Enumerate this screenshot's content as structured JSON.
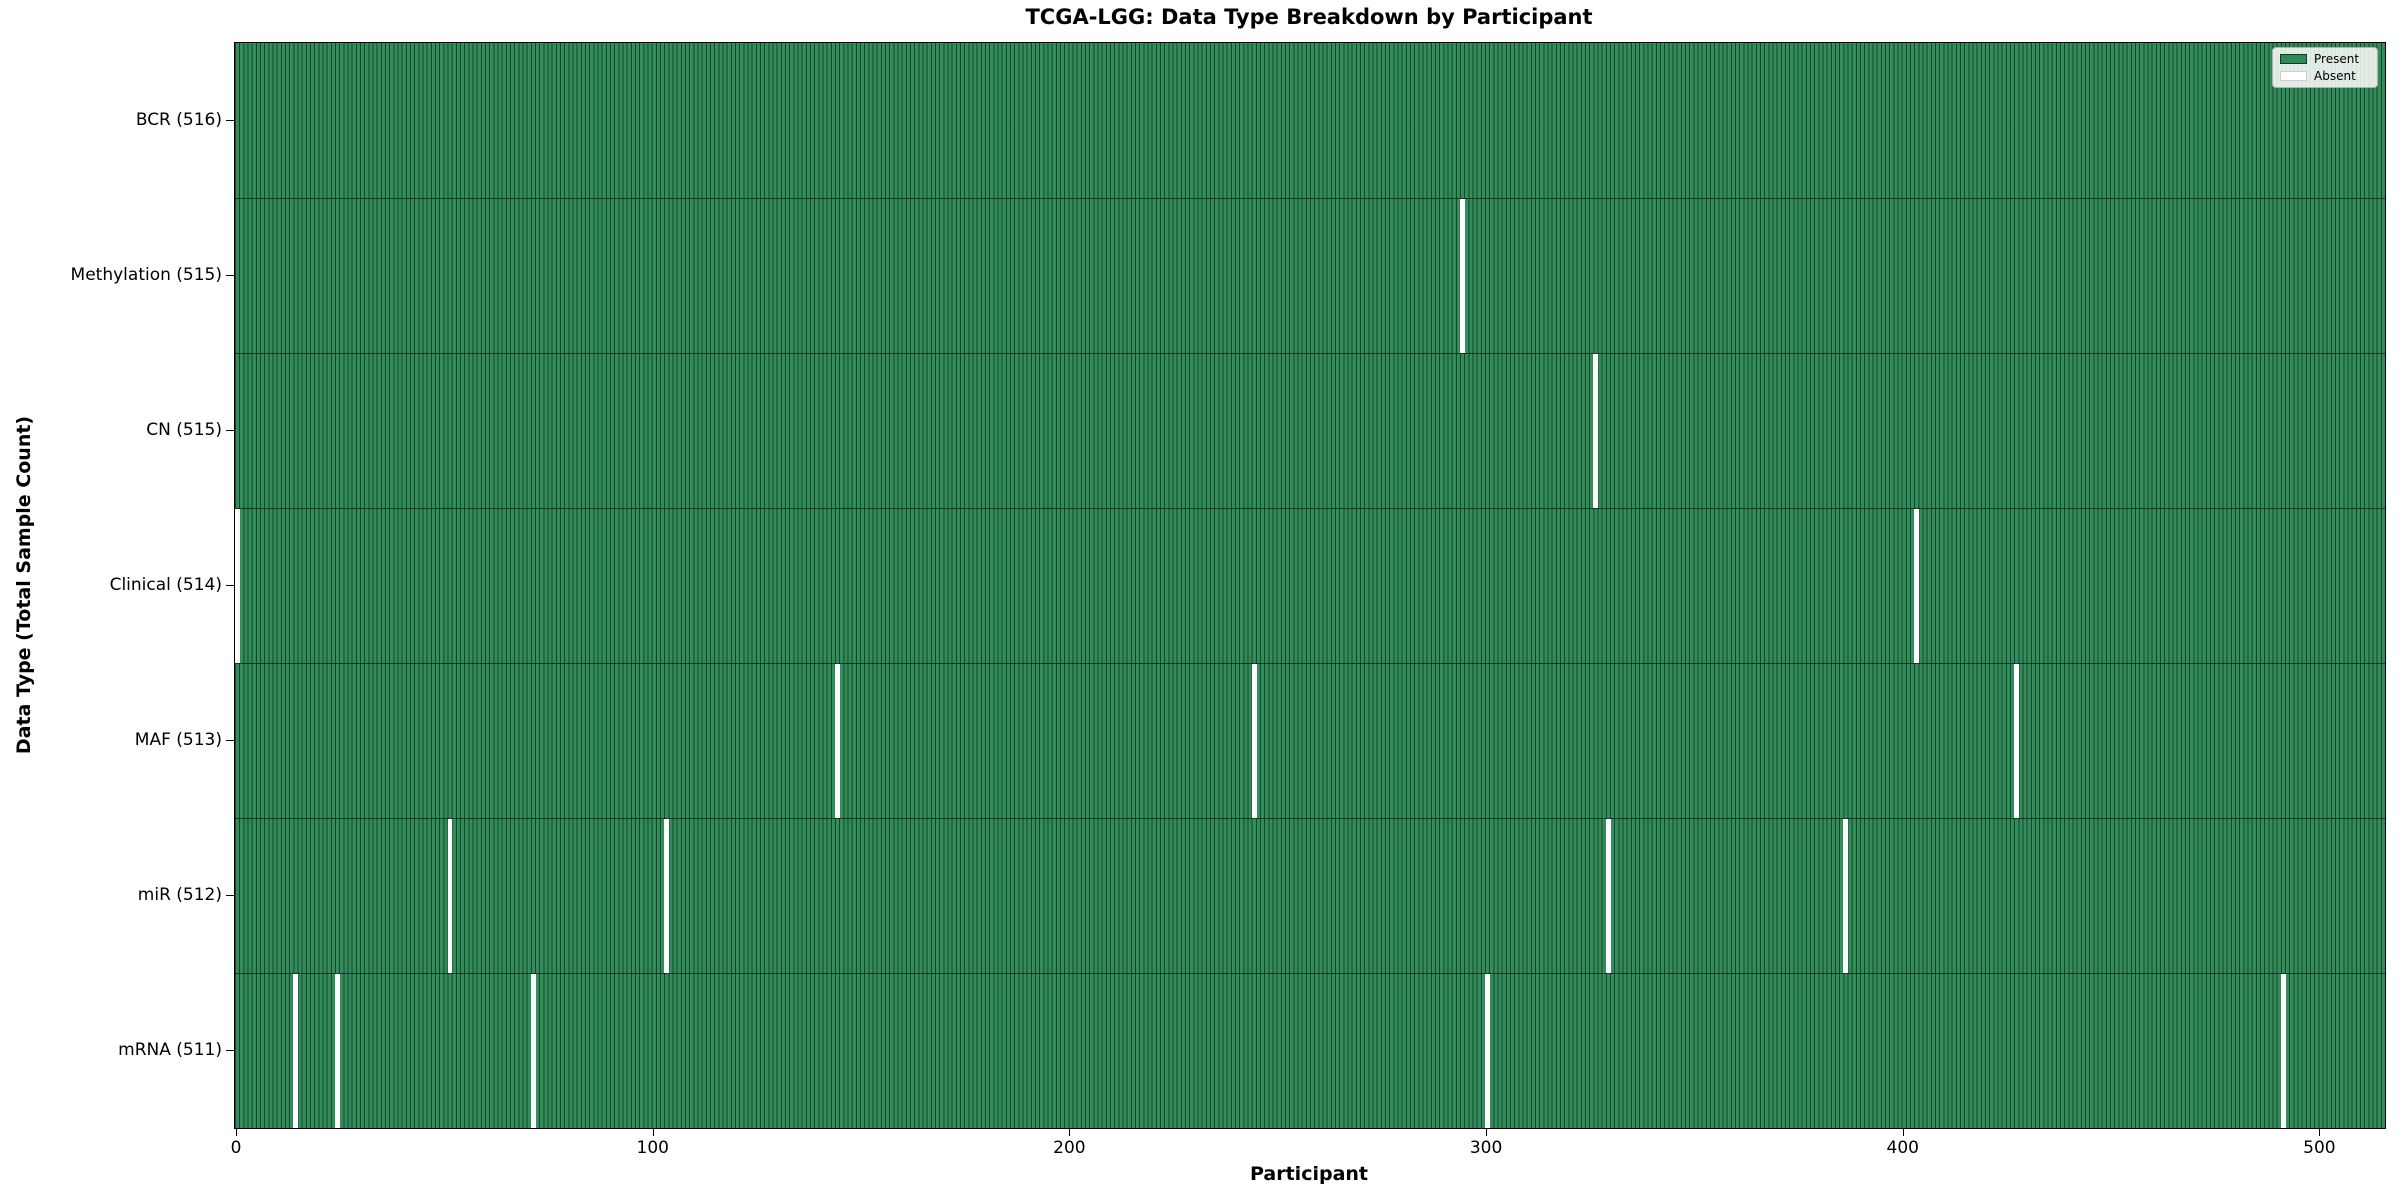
{
  "window": {
    "title": "TCGA-LGG: Data Type Breakdown by Participant"
  },
  "chart_data": {
    "type": "heatmap",
    "title": "TCGA-LGG: Data Type Breakdown by Participant",
    "xlabel": "Participant",
    "ylabel": "Data Type (Total Sample Count)",
    "x_ticks": [
      0,
      100,
      200,
      300,
      400,
      500
    ],
    "xlim": [
      -0.5,
      515.5
    ],
    "n_participants": 516,
    "grid": false,
    "legend_position": "upper right",
    "legend": [
      {
        "label": "Present",
        "color": "#2e8b57"
      },
      {
        "label": "Absent",
        "color": "#ffffff"
      }
    ],
    "colors": {
      "present": "#2e8b57",
      "absent": "#ffffff",
      "bar_edge": "rgba(0,0,0,0.5)",
      "spine": "#000000"
    },
    "rows": [
      {
        "label": "BCR (516)",
        "total": 516,
        "absent_participants": []
      },
      {
        "label": "Methylation (515)",
        "total": 515,
        "absent_participants": [
          294
        ]
      },
      {
        "label": "CN (515)",
        "total": 515,
        "absent_participants": [
          326
        ]
      },
      {
        "label": "Clinical (514)",
        "total": 514,
        "absent_participants": [
          0,
          403
        ]
      },
      {
        "label": "MAF (513)",
        "total": 513,
        "absent_participants": [
          144,
          244,
          427
        ]
      },
      {
        "label": "miR (512)",
        "total": 512,
        "absent_participants": [
          51,
          103,
          329,
          386
        ]
      },
      {
        "label": "mRNA (511)",
        "total": 511,
        "absent_participants": [
          14,
          24,
          71,
          300,
          491
        ]
      }
    ]
  }
}
